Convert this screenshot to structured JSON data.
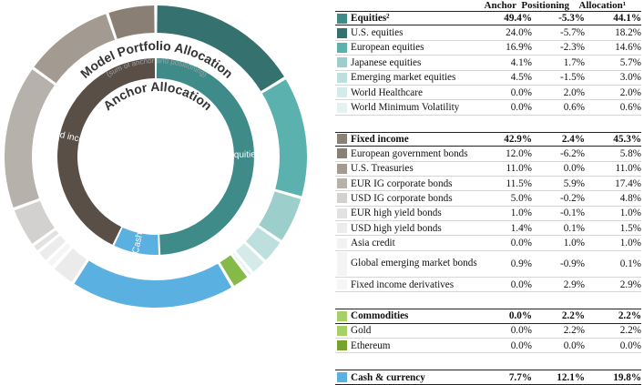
{
  "chart_data": {
    "type": "donut",
    "outer_title": "Model Portfolio Allocation",
    "outer_subtitle": "(sum of anchor and positioning)",
    "inner_title": "Anchor Allocation",
    "inner_ring": {
      "segments": [
        {
          "name": "Equities",
          "value": 49.4,
          "color": "#3e8b8a",
          "label": "Equities"
        },
        {
          "name": "Cash & currency",
          "value": 7.7,
          "color": "#5ab0e0",
          "label": "Cash"
        },
        {
          "name": "Fixed income",
          "value": 42.9,
          "color": "#5a4f47",
          "label": "Fixed income"
        }
      ]
    },
    "outer_ring": {
      "segments": [
        {
          "name": "U.S. equities",
          "value": 18.2,
          "color": "#34716f"
        },
        {
          "name": "European equities",
          "value": 14.6,
          "color": "#5bb1ad"
        },
        {
          "name": "Japanese equities",
          "value": 5.7,
          "color": "#9ccfcc"
        },
        {
          "name": "Emerging market equities",
          "value": 3.0,
          "color": "#bde0de"
        },
        {
          "name": "World Healthcare",
          "value": 2.0,
          "color": "#d4ebea"
        },
        {
          "name": "World Minimum Volatility",
          "value": 0.6,
          "color": "#e4f2f1"
        },
        {
          "name": "Gold",
          "value": 2.2,
          "color": "#86ba48"
        },
        {
          "name": "Cash & currency",
          "value": 19.8,
          "color": "#5ab0e0"
        },
        {
          "name": "Fixed income derivatives",
          "value": 2.9,
          "color": "#ebebeb"
        },
        {
          "name": "Global emerging market bonds",
          "value": 0.1,
          "color": "#f1f1f1"
        },
        {
          "name": "Asia credit",
          "value": 1.0,
          "color": "#f5f5f5"
        },
        {
          "name": "USD high yield bonds",
          "value": 1.5,
          "color": "#ececec"
        },
        {
          "name": "EUR high yield bonds",
          "value": 1.0,
          "color": "#e2e2e2"
        },
        {
          "name": "USD IG corporate bonds",
          "value": 4.8,
          "color": "#d3d1cf"
        },
        {
          "name": "EUR IG corporate bonds",
          "value": 17.4,
          "color": "#b7b1ab"
        },
        {
          "name": "U.S. Treasuries",
          "value": 11.0,
          "color": "#a39a91"
        },
        {
          "name": "European government bonds",
          "value": 5.8,
          "color": "#8a7f75"
        }
      ]
    }
  },
  "table": {
    "headers": {
      "anchor": "Anchor",
      "positioning": "Positioning",
      "allocation": "Allocation¹"
    },
    "groups": [
      {
        "name": "Equities²",
        "color": "#3e8b8a",
        "anchor": "49.4%",
        "positioning": "-5.3%",
        "allocation": "44.1%",
        "rows": [
          {
            "name": "U.S. equities",
            "color": "#34716f",
            "anchor": "24.0%",
            "positioning": "-5.7%",
            "allocation": "18.2%"
          },
          {
            "name": "European equities",
            "color": "#5bb1ad",
            "anchor": "16.9%",
            "positioning": "-2.3%",
            "allocation": "14.6%"
          },
          {
            "name": "Japanese equities",
            "color": "#9ccfcc",
            "anchor": "4.1%",
            "positioning": "1.7%",
            "allocation": "5.7%"
          },
          {
            "name": "Emerging market equities",
            "color": "#bde0de",
            "anchor": "4.5%",
            "positioning": "-1.5%",
            "allocation": "3.0%"
          },
          {
            "name": "World Healthcare",
            "color": "#d4ebea",
            "anchor": "0.0%",
            "positioning": "2.0%",
            "allocation": "2.0%"
          },
          {
            "name": "World Minimum Volatility",
            "color": "#e4f2f1",
            "anchor": "0.0%",
            "positioning": "0.6%",
            "allocation": "0.6%"
          }
        ]
      },
      {
        "name": "Fixed income",
        "color": "#8a8076",
        "anchor": "42.9%",
        "positioning": "2.4%",
        "allocation": "45.3%",
        "rows": [
          {
            "name": "European government bonds",
            "color": "#8a7f75",
            "anchor": "12.0%",
            "positioning": "-6.2%",
            "allocation": "5.8%"
          },
          {
            "name": "U.S. Treasuries",
            "color": "#a39a91",
            "anchor": "11.0%",
            "positioning": "0.0%",
            "allocation": "11.0%"
          },
          {
            "name": "EUR IG corporate bonds",
            "color": "#b7b1ab",
            "anchor": "11.5%",
            "positioning": "5.9%",
            "allocation": "17.4%"
          },
          {
            "name": "USD IG corporate bonds",
            "color": "#d3d1cf",
            "anchor": "5.0%",
            "positioning": "-0.2%",
            "allocation": "4.8%"
          },
          {
            "name": "EUR high yield bonds",
            "color": "#e2e2e2",
            "anchor": "1.0%",
            "positioning": "-0.1%",
            "allocation": "1.0%"
          },
          {
            "name": "USD high yield bonds",
            "color": "#ececec",
            "anchor": "1.4%",
            "positioning": "0.1%",
            "allocation": "1.5%"
          },
          {
            "name": "Asia credit",
            "color": "#f2f2f2",
            "anchor": "0.0%",
            "positioning": "1.0%",
            "allocation": "1.0%"
          },
          {
            "name": "Global emerging market bonds",
            "color": "#f4f4f4",
            "anchor": "0.9%",
            "positioning": "-0.9%",
            "allocation": "0.1%",
            "tall": true
          },
          {
            "name": "Fixed income derivatives",
            "color": "#f6f6f6",
            "anchor": "0.0%",
            "positioning": "2.9%",
            "allocation": "2.9%"
          }
        ]
      },
      {
        "name": "Commodities",
        "color": "#a6d16a",
        "anchor": "0.0%",
        "positioning": "2.2%",
        "allocation": "2.2%",
        "rows": [
          {
            "name": "Gold",
            "color": "#a6d16a",
            "anchor": "0.0%",
            "positioning": "2.2%",
            "allocation": "2.2%"
          },
          {
            "name": "Ethereum",
            "color": "#77a22f",
            "anchor": "0.0%",
            "positioning": "0.0%",
            "allocation": "0.0%"
          }
        ]
      },
      {
        "name": "Cash & currency",
        "color": "#5ab0e0",
        "anchor": "7.7%",
        "positioning": "12.1%",
        "allocation": "19.8%",
        "rows": []
      }
    ]
  }
}
